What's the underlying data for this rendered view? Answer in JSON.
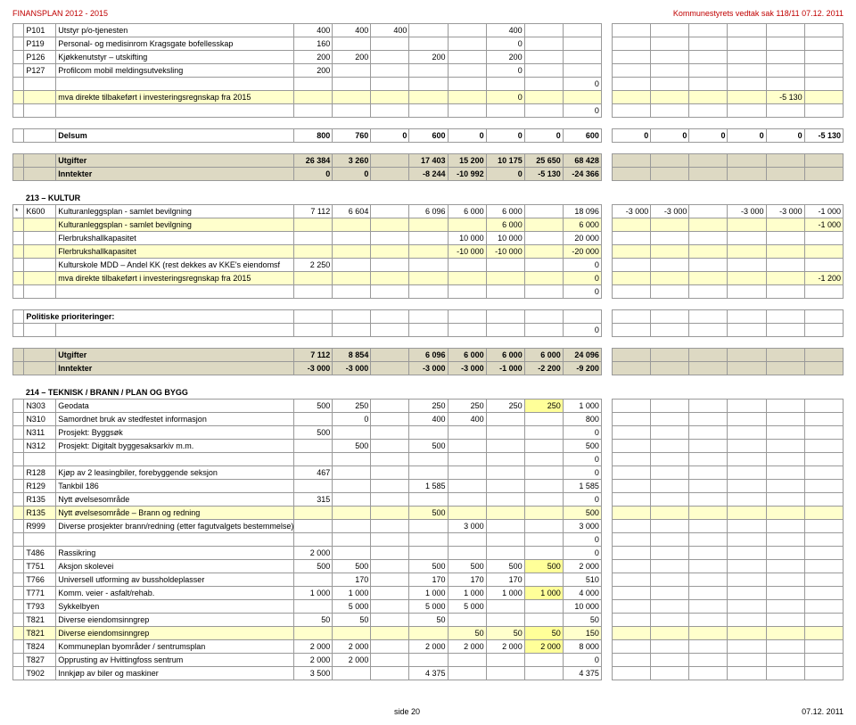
{
  "header": {
    "left": "FINANSPLAN 2012 - 2015",
    "right": "Kommunestyrets vedtak sak 118/11 07.12. 2011"
  },
  "footer": {
    "left": "side 20",
    "right": "07.12. 2011"
  },
  "rows": [
    {
      "code": "P101",
      "desc": "Utstyr p/o-tjenesten",
      "v": [
        "400",
        "400",
        "400",
        "",
        "",
        "400"
      ]
    },
    {
      "code": "P119",
      "desc": "Personal- og medisinrom Kragsgate bofellesskap",
      "v": [
        "160",
        "",
        "",
        "",
        "",
        "0"
      ]
    },
    {
      "code": "P126",
      "desc": "Kjøkkenutstyr – utskifting",
      "v": [
        "200",
        "200",
        "",
        "200",
        "",
        "200"
      ]
    },
    {
      "code": "P127",
      "desc": "Profilcom mobil meldingsutveksling",
      "v": [
        "200",
        "",
        "",
        "",
        "",
        "0"
      ]
    },
    {
      "desc": "mva direkte tilbakeført i investeringsregnskap fra 2015",
      "hl": "lightyellow",
      "v": [
        "",
        "",
        "",
        "",
        "",
        "0"
      ],
      "v2": [
        "",
        "",
        "",
        "",
        "-5 130"
      ],
      "post0": "0"
    },
    {
      "desc": "Delsum",
      "bold": true,
      "v": [
        "800",
        "760",
        "0",
        "600",
        "0",
        "0",
        "0",
        "600"
      ],
      "v2": [
        "0",
        "0",
        "0",
        "0",
        "0",
        "-5 130"
      ]
    },
    {
      "desc": "Utgifter",
      "bold": true,
      "hl": "tan",
      "v": [
        "26 384",
        "3 260",
        "",
        "17 403",
        "15 200",
        "10 175",
        "25 650",
        "68 428"
      ]
    },
    {
      "desc": "Inntekter",
      "bold": true,
      "hl": "tan",
      "v": [
        "0",
        "0",
        "",
        "-8 244",
        "-10 992",
        "0",
        "-5 130",
        "-24 366"
      ]
    }
  ],
  "sec213": {
    "title": "213 – KULTUR",
    "rows": [
      {
        "mark": "*",
        "code": "K600",
        "desc": "Kulturanleggsplan - samlet bevilgning",
        "v": [
          "7 112",
          "6 604",
          "",
          "6 096",
          "6 000",
          "6 000",
          "",
          "18 096"
        ],
        "v2": [
          "-3 000",
          "-3 000",
          "",
          "-3 000",
          "-3 000",
          "-1 000"
        ]
      },
      {
        "desc": "Kulturanleggsplan - samlet bevilgning",
        "hl": "lightyellow",
        "v": [
          "",
          "",
          "",
          "",
          "",
          "6 000",
          "",
          "6 000"
        ],
        "v2": [
          "",
          "",
          "",
          "",
          "",
          "-1 000"
        ]
      },
      {
        "desc": "Flerbrukshallkapasitet",
        "v": [
          "",
          "",
          "",
          "",
          "10 000",
          "10 000",
          "",
          "20 000"
        ]
      },
      {
        "desc": "Flerbrukshallkapasitet",
        "hl": "lightyellow",
        "v": [
          "",
          "",
          "",
          "",
          "-10 000",
          "-10 000",
          "",
          "-20 000"
        ]
      },
      {
        "desc": "Kulturskole MDD – Andel KK (rest dekkes av KKE's eiendomsf",
        "v": [
          "2 250",
          "",
          "",
          "",
          "",
          "",
          "",
          "0"
        ]
      },
      {
        "desc": "mva direkte tilbakeført i investeringsregnskap fra 2015",
        "hl": "lightyellow",
        "v": [
          "",
          "",
          "",
          "",
          "",
          "",
          "",
          "0"
        ],
        "v2": [
          "",
          "",
          "",
          "",
          "",
          "-1 200"
        ],
        "post0": "0"
      }
    ],
    "pp": "Politiske prioriteringer:",
    "sum": [
      {
        "desc": "Utgifter",
        "bold": true,
        "hl": "tan",
        "v": [
          "7 112",
          "8 854",
          "",
          "6 096",
          "6 000",
          "6 000",
          "6 000",
          "24 096"
        ]
      },
      {
        "desc": "Inntekter",
        "bold": true,
        "hl": "tan",
        "v": [
          "-3 000",
          "-3 000",
          "",
          "-3 000",
          "-3 000",
          "-1 000",
          "-2 200",
          "-9 200"
        ]
      }
    ]
  },
  "sec214": {
    "title": "214 – TEKNISK / BRANN / PLAN OG BYGG",
    "rows": [
      {
        "code": "N303",
        "desc": "Geodata",
        "v": [
          "500",
          "250",
          "",
          "250",
          "250",
          "250",
          "250",
          "1 000"
        ],
        "hl6": true
      },
      {
        "code": "N310",
        "desc": "Samordnet bruk av stedfestet informasjon",
        "v": [
          "",
          "0",
          "",
          "400",
          "400",
          "",
          "",
          "800"
        ]
      },
      {
        "code": "N311",
        "desc": "Prosjekt: Byggsøk",
        "v": [
          "500",
          "",
          "",
          "",
          "",
          "",
          "",
          "0"
        ]
      },
      {
        "code": "N312",
        "desc": "Prosjekt: Digitalt byggesaksarkiv m.m.",
        "v": [
          "",
          "500",
          "",
          "500",
          "",
          "",
          "",
          "500"
        ]
      },
      {
        "blank": true,
        "v": [
          "",
          "",
          "",
          "",
          "",
          "",
          "",
          "0"
        ]
      },
      {
        "code": "R128",
        "desc": "Kjøp av 2 leasingbiler, forebyggende seksjon",
        "v": [
          "467",
          "",
          "",
          "",
          "",
          "",
          "",
          "0"
        ]
      },
      {
        "code": "R129",
        "desc": "Tankbil 186",
        "v": [
          "",
          "",
          "",
          "1 585",
          "",
          "",
          "",
          "1 585"
        ]
      },
      {
        "code": "R135",
        "desc": "Nytt øvelsesområde",
        "v": [
          "315",
          "",
          "",
          "",
          "",
          "",
          "",
          "0"
        ]
      },
      {
        "code": "R135",
        "desc": "Nytt øvelsesområde – Brann og redning",
        "v": [
          "",
          "",
          "",
          "500",
          "",
          "",
          "",
          "500"
        ],
        "hl": "lightyellow"
      },
      {
        "code": "R999",
        "desc": "Diverse prosjekter brann/redning (etter fagutvalgets bestemmelse)",
        "v": [
          "",
          "",
          "",
          "",
          "3 000",
          "",
          "",
          "3 000"
        ]
      },
      {
        "blank": true,
        "v": [
          "",
          "",
          "",
          "",
          "",
          "",
          "",
          "0"
        ]
      },
      {
        "code": "T486",
        "desc": "Rassikring",
        "v": [
          "2 000",
          "",
          "",
          "",
          "",
          "",
          "",
          "0"
        ]
      },
      {
        "code": "T751",
        "desc": "Aksjon skolevei",
        "v": [
          "500",
          "500",
          "",
          "500",
          "500",
          "500",
          "500",
          "2 000"
        ],
        "hl6": true
      },
      {
        "code": "T766",
        "desc": "Universell utforming av bussholdeplasser",
        "v": [
          "",
          "170",
          "",
          "170",
          "170",
          "170",
          "",
          "510"
        ]
      },
      {
        "code": "T771",
        "desc": "Komm. veier - asfalt/rehab.",
        "v": [
          "1 000",
          "1 000",
          "",
          "1 000",
          "1 000",
          "1 000",
          "1 000",
          "4 000"
        ],
        "hl6": true
      },
      {
        "code": "T793",
        "desc": "Sykkelbyen",
        "v": [
          "",
          "5 000",
          "",
          "5 000",
          "5 000",
          "",
          "",
          "10 000"
        ]
      },
      {
        "code": "T821",
        "desc": "Diverse eiendomsinngrep",
        "v": [
          "50",
          "50",
          "",
          "50",
          "",
          "",
          "",
          "50"
        ]
      },
      {
        "code": "T821",
        "desc": "Diverse eiendomsinngrep",
        "v": [
          "",
          "",
          "",
          "",
          "50",
          "50",
          "50",
          "150"
        ],
        "hl": "lightyellow",
        "hl6": true
      },
      {
        "code": "T824",
        "desc": "Kommuneplan byområder / sentrumsplan",
        "v": [
          "2 000",
          "2 000",
          "",
          "2 000",
          "2 000",
          "2 000",
          "2 000",
          "8 000"
        ],
        "hl6": true
      },
      {
        "code": "T827",
        "desc": "Opprusting av Hvittingfoss sentrum",
        "v": [
          "2 000",
          "2 000",
          "",
          "",
          "",
          "",
          "",
          "0"
        ]
      },
      {
        "code": "T902",
        "desc": "Innkjøp av biler og maskiner",
        "v": [
          "3 500",
          "",
          "",
          "4 375",
          "",
          "",
          "",
          "4 375"
        ]
      }
    ]
  }
}
